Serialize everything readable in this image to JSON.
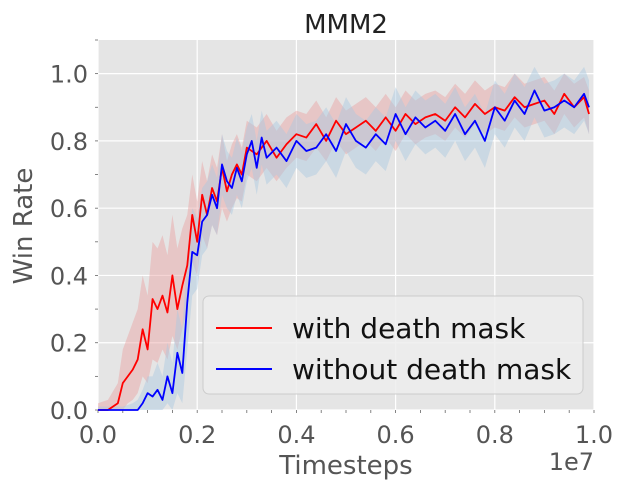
{
  "chart_data": {
    "type": "line",
    "title": "MMM2",
    "xlabel": "Timesteps",
    "ylabel": "Win Rate",
    "x_offset_label": "1e7",
    "xlim": [
      0,
      1.0
    ],
    "ylim": [
      0,
      1.1
    ],
    "x_ticks": [
      {
        "value": 0.0,
        "label": "0.0"
      },
      {
        "value": 0.2,
        "label": "0.2"
      },
      {
        "value": 0.4,
        "label": "0.4"
      },
      {
        "value": 0.6,
        "label": "0.6"
      },
      {
        "value": 0.8,
        "label": "0.8"
      },
      {
        "value": 1.0,
        "label": "1.0"
      }
    ],
    "y_ticks": [
      {
        "value": 0.0,
        "label": "0.0"
      },
      {
        "value": 0.2,
        "label": "0.2"
      },
      {
        "value": 0.4,
        "label": "0.4"
      },
      {
        "value": 0.6,
        "label": "0.6"
      },
      {
        "value": 0.8,
        "label": "0.8"
      },
      {
        "value": 1.0,
        "label": "1.0"
      }
    ],
    "grid": true,
    "legend": "lower-right",
    "series": [
      {
        "name": "with death mask",
        "color": "#ff0000",
        "band_color": "#e8a0a0",
        "x": [
          0.0,
          0.02,
          0.04,
          0.05,
          0.06,
          0.07,
          0.08,
          0.09,
          0.1,
          0.11,
          0.12,
          0.13,
          0.14,
          0.15,
          0.16,
          0.17,
          0.18,
          0.19,
          0.2,
          0.21,
          0.22,
          0.23,
          0.24,
          0.25,
          0.26,
          0.27,
          0.28,
          0.29,
          0.3,
          0.32,
          0.34,
          0.36,
          0.38,
          0.4,
          0.42,
          0.44,
          0.46,
          0.48,
          0.5,
          0.52,
          0.54,
          0.56,
          0.58,
          0.6,
          0.62,
          0.64,
          0.66,
          0.68,
          0.7,
          0.72,
          0.74,
          0.76,
          0.78,
          0.8,
          0.82,
          0.84,
          0.86,
          0.88,
          0.9,
          0.92,
          0.94,
          0.96,
          0.98,
          0.99
        ],
        "y": [
          0.0,
          0.0,
          0.02,
          0.08,
          0.1,
          0.12,
          0.15,
          0.24,
          0.18,
          0.33,
          0.3,
          0.34,
          0.29,
          0.4,
          0.3,
          0.37,
          0.43,
          0.58,
          0.5,
          0.64,
          0.58,
          0.66,
          0.62,
          0.72,
          0.65,
          0.7,
          0.73,
          0.7,
          0.78,
          0.76,
          0.8,
          0.75,
          0.79,
          0.82,
          0.81,
          0.85,
          0.8,
          0.86,
          0.82,
          0.84,
          0.86,
          0.83,
          0.87,
          0.83,
          0.88,
          0.85,
          0.87,
          0.88,
          0.86,
          0.9,
          0.87,
          0.91,
          0.88,
          0.9,
          0.89,
          0.93,
          0.9,
          0.91,
          0.92,
          0.88,
          0.94,
          0.9,
          0.93,
          0.88
        ],
        "band_lower": [
          0.0,
          0.0,
          0.0,
          0.0,
          0.02,
          0.03,
          0.05,
          0.1,
          0.08,
          0.15,
          0.14,
          0.18,
          0.15,
          0.22,
          0.18,
          0.24,
          0.3,
          0.44,
          0.4,
          0.52,
          0.48,
          0.55,
          0.52,
          0.6,
          0.56,
          0.6,
          0.63,
          0.62,
          0.7,
          0.68,
          0.72,
          0.68,
          0.72,
          0.75,
          0.74,
          0.78,
          0.74,
          0.8,
          0.76,
          0.78,
          0.8,
          0.77,
          0.81,
          0.77,
          0.82,
          0.79,
          0.81,
          0.82,
          0.8,
          0.84,
          0.81,
          0.85,
          0.82,
          0.84,
          0.83,
          0.87,
          0.84,
          0.85,
          0.86,
          0.82,
          0.88,
          0.84,
          0.87,
          0.82
        ],
        "band_upper": [
          0.02,
          0.03,
          0.08,
          0.18,
          0.22,
          0.26,
          0.3,
          0.4,
          0.34,
          0.5,
          0.48,
          0.52,
          0.46,
          0.58,
          0.48,
          0.54,
          0.58,
          0.7,
          0.62,
          0.74,
          0.68,
          0.76,
          0.72,
          0.82,
          0.74,
          0.79,
          0.82,
          0.78,
          0.86,
          0.84,
          0.88,
          0.83,
          0.87,
          0.89,
          0.88,
          0.92,
          0.87,
          0.93,
          0.89,
          0.91,
          0.93,
          0.9,
          0.94,
          0.9,
          0.95,
          0.92,
          0.94,
          0.95,
          0.93,
          0.97,
          0.94,
          0.98,
          0.95,
          0.97,
          0.96,
          1.0,
          0.97,
          0.98,
          0.99,
          0.95,
          1.0,
          0.97,
          0.99,
          0.95
        ]
      },
      {
        "name": "without death mask",
        "color": "#0000ff",
        "band_color": "#a8c8e0",
        "x": [
          0.0,
          0.05,
          0.07,
          0.08,
          0.09,
          0.1,
          0.11,
          0.12,
          0.13,
          0.14,
          0.15,
          0.16,
          0.17,
          0.18,
          0.19,
          0.2,
          0.21,
          0.22,
          0.23,
          0.24,
          0.25,
          0.26,
          0.27,
          0.28,
          0.29,
          0.3,
          0.31,
          0.32,
          0.33,
          0.34,
          0.36,
          0.38,
          0.4,
          0.42,
          0.44,
          0.46,
          0.48,
          0.5,
          0.52,
          0.54,
          0.56,
          0.58,
          0.6,
          0.62,
          0.64,
          0.66,
          0.68,
          0.7,
          0.72,
          0.74,
          0.76,
          0.78,
          0.8,
          0.82,
          0.84,
          0.86,
          0.88,
          0.9,
          0.92,
          0.94,
          0.96,
          0.98,
          0.99
        ],
        "y": [
          0.0,
          0.0,
          0.0,
          0.0,
          0.02,
          0.05,
          0.04,
          0.06,
          0.03,
          0.1,
          0.05,
          0.17,
          0.11,
          0.32,
          0.47,
          0.46,
          0.56,
          0.58,
          0.64,
          0.6,
          0.73,
          0.68,
          0.66,
          0.72,
          0.68,
          0.76,
          0.8,
          0.72,
          0.81,
          0.75,
          0.78,
          0.74,
          0.8,
          0.77,
          0.78,
          0.82,
          0.77,
          0.85,
          0.8,
          0.78,
          0.82,
          0.79,
          0.88,
          0.82,
          0.87,
          0.84,
          0.86,
          0.83,
          0.88,
          0.82,
          0.86,
          0.8,
          0.9,
          0.86,
          0.92,
          0.88,
          0.95,
          0.89,
          0.9,
          0.92,
          0.9,
          0.94,
          0.9
        ],
        "band_lower": [
          0.0,
          0.0,
          0.0,
          0.0,
          0.0,
          0.0,
          0.0,
          0.0,
          0.0,
          0.02,
          0.0,
          0.05,
          0.02,
          0.18,
          0.34,
          0.36,
          0.46,
          0.48,
          0.55,
          0.52,
          0.64,
          0.6,
          0.58,
          0.64,
          0.6,
          0.68,
          0.72,
          0.64,
          0.73,
          0.67,
          0.7,
          0.66,
          0.72,
          0.69,
          0.7,
          0.74,
          0.69,
          0.77,
          0.72,
          0.7,
          0.74,
          0.71,
          0.8,
          0.74,
          0.79,
          0.76,
          0.78,
          0.75,
          0.8,
          0.74,
          0.78,
          0.72,
          0.82,
          0.78,
          0.84,
          0.8,
          0.87,
          0.81,
          0.82,
          0.84,
          0.82,
          0.86,
          0.82
        ],
        "band_upper": [
          0.01,
          0.01,
          0.02,
          0.03,
          0.06,
          0.1,
          0.1,
          0.14,
          0.1,
          0.2,
          0.14,
          0.3,
          0.24,
          0.46,
          0.6,
          0.57,
          0.66,
          0.68,
          0.73,
          0.69,
          0.82,
          0.77,
          0.75,
          0.81,
          0.77,
          0.84,
          0.88,
          0.8,
          0.89,
          0.83,
          0.86,
          0.82,
          0.88,
          0.85,
          0.86,
          0.9,
          0.85,
          0.93,
          0.88,
          0.86,
          0.9,
          0.87,
          0.96,
          0.9,
          0.95,
          0.92,
          0.94,
          0.91,
          0.96,
          0.9,
          0.94,
          0.88,
          0.98,
          0.94,
          1.0,
          0.96,
          1.02,
          0.97,
          0.98,
          1.0,
          0.98,
          1.02,
          0.98
        ]
      }
    ]
  }
}
